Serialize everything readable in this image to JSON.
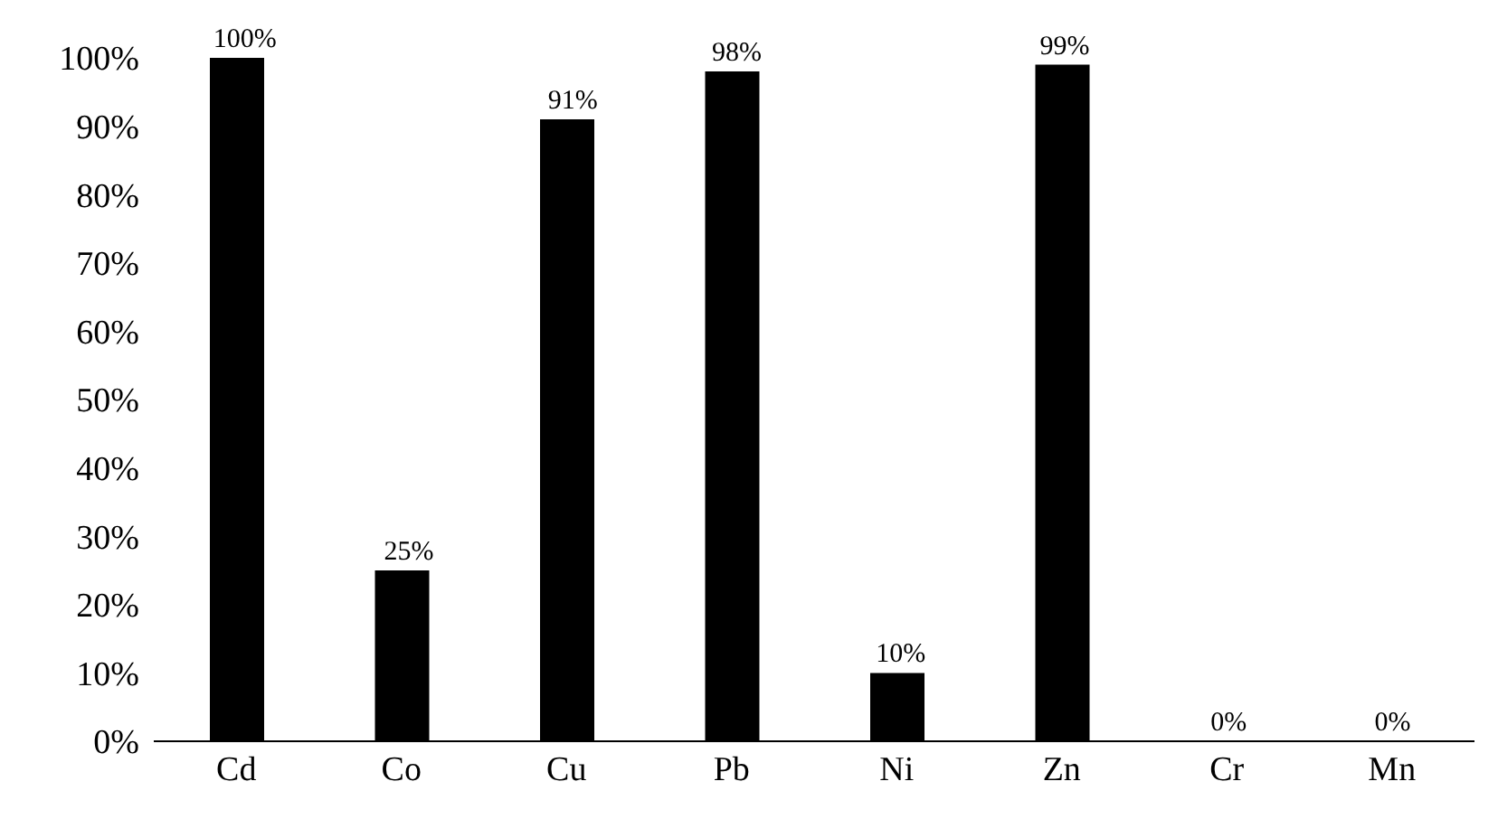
{
  "chart_data": {
    "type": "bar",
    "categories": [
      "Cd",
      "Co",
      "Cu",
      "Pb",
      "Ni",
      "Zn",
      "Cr",
      "Mn"
    ],
    "values": [
      100,
      25,
      91,
      98,
      10,
      99,
      0,
      0
    ],
    "value_labels": [
      "100%",
      "25%",
      "91%",
      "98%",
      "10%",
      "99%",
      "0%",
      "0%"
    ],
    "color": "#000000",
    "ylim": [
      0,
      100
    ],
    "yticks": [
      {
        "value": 0,
        "label": "0%"
      },
      {
        "value": 10,
        "label": "10%"
      },
      {
        "value": 20,
        "label": "20%"
      },
      {
        "value": 30,
        "label": "30%"
      },
      {
        "value": 40,
        "label": "40%"
      },
      {
        "value": 50,
        "label": "50%"
      },
      {
        "value": 60,
        "label": "60%"
      },
      {
        "value": 70,
        "label": "70%"
      },
      {
        "value": 80,
        "label": "80%"
      },
      {
        "value": 90,
        "label": "90%"
      },
      {
        "value": 100,
        "label": "100%"
      }
    ],
    "grid": false,
    "legend": false
  }
}
